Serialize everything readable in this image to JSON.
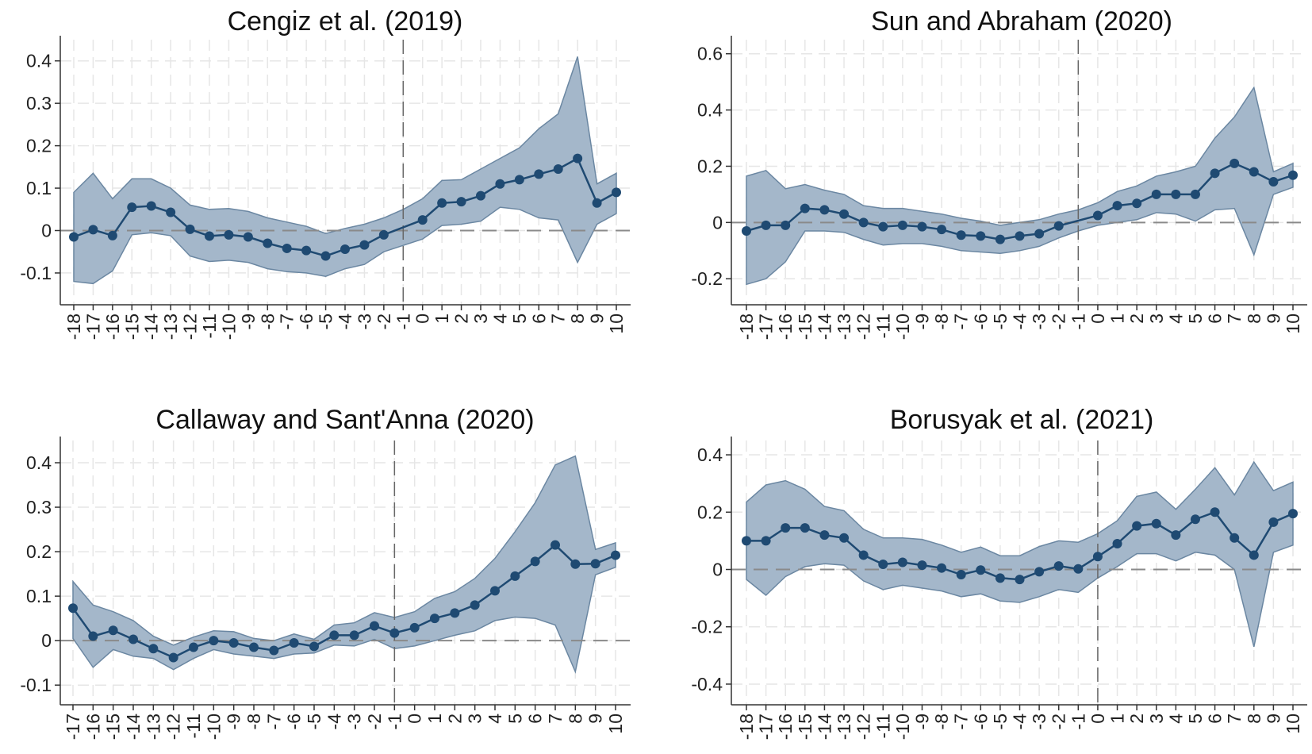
{
  "colors": {
    "band_fill": "#a4b7ca",
    "band_stroke": "#6b87a2",
    "line": "#1f4a72",
    "grid": "#e6e6e6",
    "zero_line": "#8a8a8a",
    "ref_line": "#666666"
  },
  "chart_data": [
    {
      "type": "line",
      "title": "Cengiz et al. (2019)",
      "x": [
        -18,
        -17,
        -16,
        -15,
        -14,
        -13,
        -12,
        -11,
        -10,
        -9,
        -8,
        -7,
        -6,
        -5,
        -4,
        -3,
        -2,
        -1,
        0,
        1,
        2,
        3,
        4,
        5,
        6,
        7,
        8,
        9,
        10
      ],
      "estimate": [
        -0.015,
        0.002,
        -0.012,
        0.055,
        0.058,
        0.043,
        0.003,
        -0.013,
        -0.01,
        -0.015,
        -0.03,
        -0.042,
        -0.047,
        -0.06,
        -0.044,
        -0.034,
        -0.01,
        null,
        0.025,
        0.065,
        0.068,
        0.082,
        0.11,
        0.12,
        0.133,
        0.145,
        0.17,
        0.065,
        0.09
      ],
      "ci_lower": [
        -0.12,
        -0.125,
        -0.095,
        -0.01,
        -0.005,
        -0.012,
        -0.06,
        -0.073,
        -0.07,
        -0.075,
        -0.09,
        -0.097,
        -0.1,
        -0.108,
        -0.09,
        -0.08,
        -0.05,
        -0.035,
        -0.02,
        0.012,
        0.015,
        0.022,
        0.055,
        0.05,
        0.03,
        0.025,
        -0.075,
        0.015,
        0.04
      ],
      "ci_upper": [
        0.09,
        0.135,
        0.075,
        0.122,
        0.122,
        0.1,
        0.06,
        0.05,
        0.052,
        0.045,
        0.03,
        0.02,
        0.01,
        -0.007,
        0.005,
        0.015,
        0.03,
        0.05,
        0.075,
        0.118,
        0.12,
        0.145,
        0.17,
        0.195,
        0.24,
        0.275,
        0.41,
        0.11,
        0.135
      ],
      "yticks": [
        -0.1,
        0,
        0.1,
        0.2,
        0.3,
        0.4
      ],
      "ytick_labels": [
        "-0.1",
        "0",
        "0.1",
        "0.2",
        "0.3",
        "0.4"
      ],
      "reference_x": -1,
      "ylim": [
        -0.16,
        0.45
      ],
      "grid": true
    },
    {
      "type": "line",
      "title": "Sun and Abraham (2020)",
      "x": [
        -18,
        -17,
        -16,
        -15,
        -14,
        -13,
        -12,
        -11,
        -10,
        -9,
        -8,
        -7,
        -6,
        -5,
        -4,
        -3,
        -2,
        -1,
        0,
        1,
        2,
        3,
        4,
        5,
        6,
        7,
        8,
        9,
        10
      ],
      "estimate": [
        -0.03,
        -0.01,
        -0.01,
        0.05,
        0.045,
        0.03,
        0.0,
        -0.015,
        -0.01,
        -0.015,
        -0.025,
        -0.045,
        -0.048,
        -0.06,
        -0.048,
        -0.04,
        -0.012,
        null,
        0.025,
        0.06,
        0.068,
        0.1,
        0.1,
        0.1,
        0.175,
        0.21,
        0.18,
        0.145,
        0.168
      ],
      "ci_lower": [
        -0.22,
        -0.2,
        -0.14,
        -0.03,
        -0.03,
        -0.035,
        -0.06,
        -0.08,
        -0.075,
        -0.075,
        -0.085,
        -0.1,
        -0.105,
        -0.11,
        -0.1,
        -0.085,
        -0.055,
        -0.03,
        -0.01,
        0.0,
        0.01,
        0.035,
        0.03,
        0.005,
        0.045,
        0.05,
        -0.115,
        0.1,
        0.125
      ],
      "ci_upper": [
        0.165,
        0.185,
        0.12,
        0.135,
        0.115,
        0.1,
        0.06,
        0.05,
        0.05,
        0.04,
        0.03,
        0.015,
        0.005,
        -0.01,
        0.0,
        0.01,
        0.03,
        0.045,
        0.07,
        0.11,
        0.13,
        0.165,
        0.18,
        0.2,
        0.3,
        0.375,
        0.48,
        0.18,
        0.21
      ],
      "yticks": [
        -0.2,
        0,
        0.2,
        0.4,
        0.6
      ],
      "ytick_labels": [
        "-0.2",
        "0",
        "0.2",
        "0.4",
        "0.6"
      ],
      "reference_x": -1,
      "ylim": [
        -0.27,
        0.65
      ],
      "grid": true
    },
    {
      "type": "line",
      "title": "Callaway and Sant'Anna (2020)",
      "x": [
        -17,
        -16,
        -15,
        -14,
        -13,
        -12,
        -11,
        -10,
        -9,
        -8,
        -7,
        -6,
        -5,
        -4,
        -3,
        -2,
        -1,
        0,
        1,
        2,
        3,
        4,
        5,
        6,
        7,
        8,
        9,
        10
      ],
      "estimate": [
        0.073,
        0.01,
        0.023,
        0.003,
        -0.018,
        -0.038,
        -0.015,
        0.0,
        -0.005,
        -0.015,
        -0.022,
        -0.005,
        -0.013,
        0.012,
        0.012,
        0.033,
        0.017,
        0.029,
        0.05,
        0.062,
        0.08,
        0.112,
        0.145,
        0.178,
        0.215,
        0.172,
        0.173,
        0.192
      ],
      "ci_lower": [
        0.005,
        -0.06,
        -0.02,
        -0.035,
        -0.04,
        -0.065,
        -0.04,
        -0.02,
        -0.03,
        -0.035,
        -0.04,
        -0.03,
        -0.028,
        -0.01,
        -0.012,
        0.003,
        -0.018,
        -0.012,
        0.0,
        0.012,
        0.022,
        0.045,
        0.053,
        0.05,
        0.035,
        -0.07,
        0.148,
        0.165
      ],
      "ci_upper": [
        0.133,
        0.08,
        0.065,
        0.045,
        0.01,
        -0.01,
        0.008,
        0.022,
        0.02,
        0.005,
        0.0,
        0.015,
        0.003,
        0.035,
        0.04,
        0.063,
        0.052,
        0.065,
        0.095,
        0.11,
        0.14,
        0.185,
        0.245,
        0.31,
        0.395,
        0.415,
        0.205,
        0.22
      ],
      "yticks": [
        -0.1,
        0,
        0.1,
        0.2,
        0.3,
        0.4
      ],
      "ytick_labels": [
        "-0.1",
        "0",
        "0.1",
        "0.2",
        "0.3",
        "0.4"
      ],
      "reference_x": -1,
      "ylim": [
        -0.13,
        0.45
      ],
      "grid": true
    },
    {
      "type": "line",
      "title": "Borusyak et al. (2021)",
      "x": [
        -18,
        -17,
        -16,
        -15,
        -14,
        -13,
        -12,
        -11,
        -10,
        -9,
        -8,
        -7,
        -6,
        -5,
        -4,
        -3,
        -2,
        -1,
        0,
        1,
        2,
        3,
        4,
        5,
        6,
        7,
        8,
        9,
        10
      ],
      "estimate": [
        0.1,
        0.1,
        0.145,
        0.145,
        0.12,
        0.11,
        0.05,
        0.018,
        0.025,
        0.015,
        0.005,
        -0.018,
        -0.002,
        -0.03,
        -0.035,
        -0.008,
        0.012,
        0.002,
        0.045,
        0.09,
        0.152,
        0.16,
        0.12,
        0.175,
        0.2,
        0.11,
        0.05,
        0.165,
        0.195
      ],
      "ci_lower": [
        -0.035,
        -0.09,
        -0.025,
        0.01,
        0.02,
        0.015,
        -0.04,
        -0.07,
        -0.055,
        -0.065,
        -0.075,
        -0.095,
        -0.085,
        -0.11,
        -0.115,
        -0.095,
        -0.07,
        -0.08,
        -0.03,
        0.01,
        0.055,
        0.055,
        0.03,
        0.06,
        0.05,
        0.0,
        -0.27,
        0.06,
        0.085
      ],
      "ci_upper": [
        0.235,
        0.295,
        0.31,
        0.28,
        0.22,
        0.205,
        0.14,
        0.11,
        0.11,
        0.105,
        0.085,
        0.06,
        0.078,
        0.048,
        0.048,
        0.08,
        0.1,
        0.095,
        0.125,
        0.17,
        0.255,
        0.27,
        0.21,
        0.28,
        0.355,
        0.26,
        0.375,
        0.275,
        0.305
      ],
      "yticks": [
        -0.4,
        -0.2,
        0,
        0.2,
        0.4
      ],
      "ytick_labels": [
        "-0.4",
        "-0.2",
        "0",
        "0.2",
        "0.4"
      ],
      "reference_x": 0,
      "ylim": [
        -0.45,
        0.45
      ],
      "grid": true
    }
  ]
}
